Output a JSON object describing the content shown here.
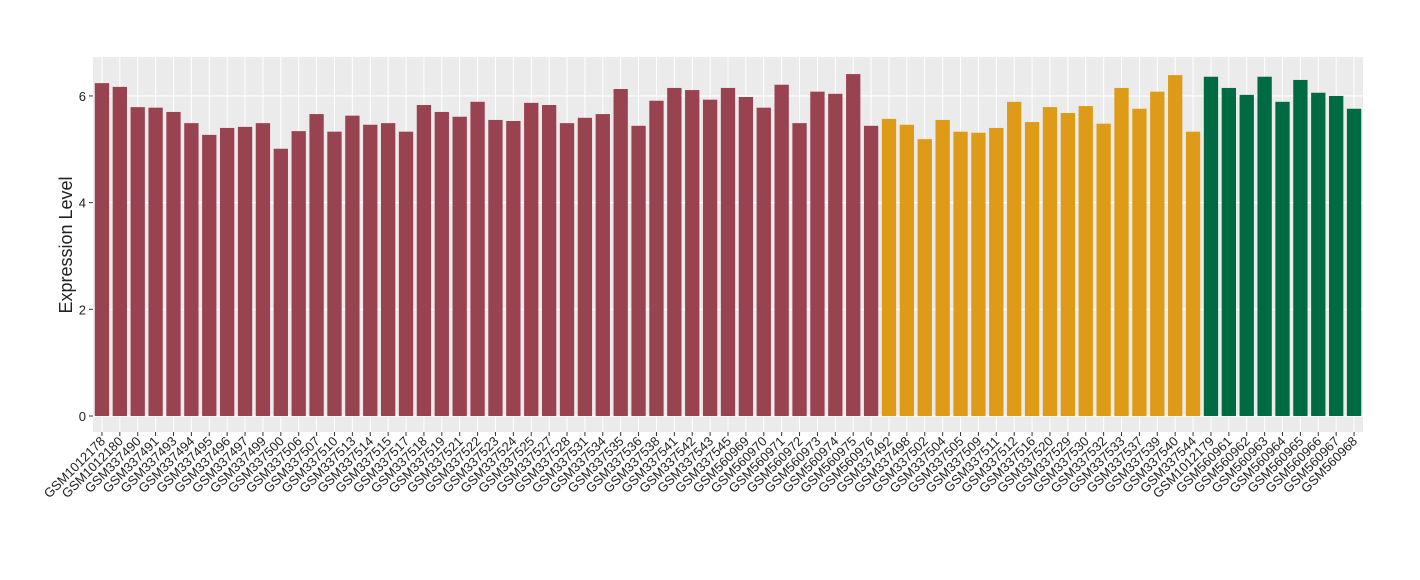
{
  "chart_data": {
    "type": "bar",
    "y_label": "Expression Level",
    "categories": [
      "GSM1012178",
      "GSM1012180",
      "GSM337490",
      "GSM337491",
      "GSM337493",
      "GSM337494",
      "GSM337495",
      "GSM337496",
      "GSM337497",
      "GSM337499",
      "GSM337500",
      "GSM337506",
      "GSM337507",
      "GSM337510",
      "GSM337513",
      "GSM337514",
      "GSM337515",
      "GSM337517",
      "GSM337518",
      "GSM337519",
      "GSM337521",
      "GSM337522",
      "GSM337523",
      "GSM337524",
      "GSM337525",
      "GSM337527",
      "GSM337528",
      "GSM337531",
      "GSM337534",
      "GSM337535",
      "GSM337536",
      "GSM337538",
      "GSM337541",
      "GSM337542",
      "GSM337543",
      "GSM337545",
      "GSM560969",
      "GSM560970",
      "GSM560971",
      "GSM560972",
      "GSM560973",
      "GSM560974",
      "GSM560975",
      "GSM560976",
      "GSM337492",
      "GSM337498",
      "GSM337502",
      "GSM337504",
      "GSM337505",
      "GSM337509",
      "GSM337511",
      "GSM337512",
      "GSM337516",
      "GSM337520",
      "GSM337529",
      "GSM337530",
      "GSM337532",
      "GSM337533",
      "GSM337537",
      "GSM337539",
      "GSM337540",
      "GSM337544",
      "GSM1012179",
      "GSM560961",
      "GSM560962",
      "GSM560963",
      "GSM560964",
      "GSM560965",
      "GSM560966",
      "GSM560967",
      "GSM560968"
    ],
    "values": [
      6.24,
      6.17,
      5.79,
      5.78,
      5.7,
      5.49,
      5.27,
      5.4,
      5.42,
      5.49,
      5.01,
      5.34,
      5.66,
      5.33,
      5.63,
      5.46,
      5.49,
      5.33,
      5.83,
      5.7,
      5.61,
      5.89,
      5.55,
      5.53,
      5.87,
      5.83,
      5.49,
      5.59,
      5.66,
      6.13,
      5.44,
      5.91,
      6.15,
      6.11,
      5.93,
      6.15,
      5.98,
      5.78,
      6.21,
      5.49,
      6.08,
      6.04,
      6.41,
      5.44,
      5.57,
      5.46,
      5.19,
      5.55,
      5.33,
      5.31,
      5.4,
      5.89,
      5.51,
      5.79,
      5.68,
      5.81,
      5.48,
      6.15,
      5.76,
      6.08,
      6.39,
      5.33,
      6.36,
      6.15,
      6.02,
      6.36,
      5.89,
      6.3,
      6.06,
      6.0,
      5.76
    ],
    "colors": [
      "#994350",
      "#994350",
      "#994350",
      "#994350",
      "#994350",
      "#994350",
      "#994350",
      "#994350",
      "#994350",
      "#994350",
      "#994350",
      "#994350",
      "#994350",
      "#994350",
      "#994350",
      "#994350",
      "#994350",
      "#994350",
      "#994350",
      "#994350",
      "#994350",
      "#994350",
      "#994350",
      "#994350",
      "#994350",
      "#994350",
      "#994350",
      "#994350",
      "#994350",
      "#994350",
      "#994350",
      "#994350",
      "#994350",
      "#994350",
      "#994350",
      "#994350",
      "#994350",
      "#994350",
      "#994350",
      "#994350",
      "#994350",
      "#994350",
      "#994350",
      "#994350",
      "#de9b17",
      "#de9b17",
      "#de9b17",
      "#de9b17",
      "#de9b17",
      "#de9b17",
      "#de9b17",
      "#de9b17",
      "#de9b17",
      "#de9b17",
      "#de9b17",
      "#de9b17",
      "#de9b17",
      "#de9b17",
      "#de9b17",
      "#de9b17",
      "#de9b17",
      "#de9b17",
      "#006a42",
      "#006a42",
      "#006a42",
      "#006a42",
      "#006a42",
      "#006a42",
      "#006a42",
      "#006a42",
      "#006a42"
    ],
    "ylim": [
      -0.3,
      6.73
    ],
    "yticks": [
      0,
      2,
      4,
      6
    ],
    "grid": true
  }
}
